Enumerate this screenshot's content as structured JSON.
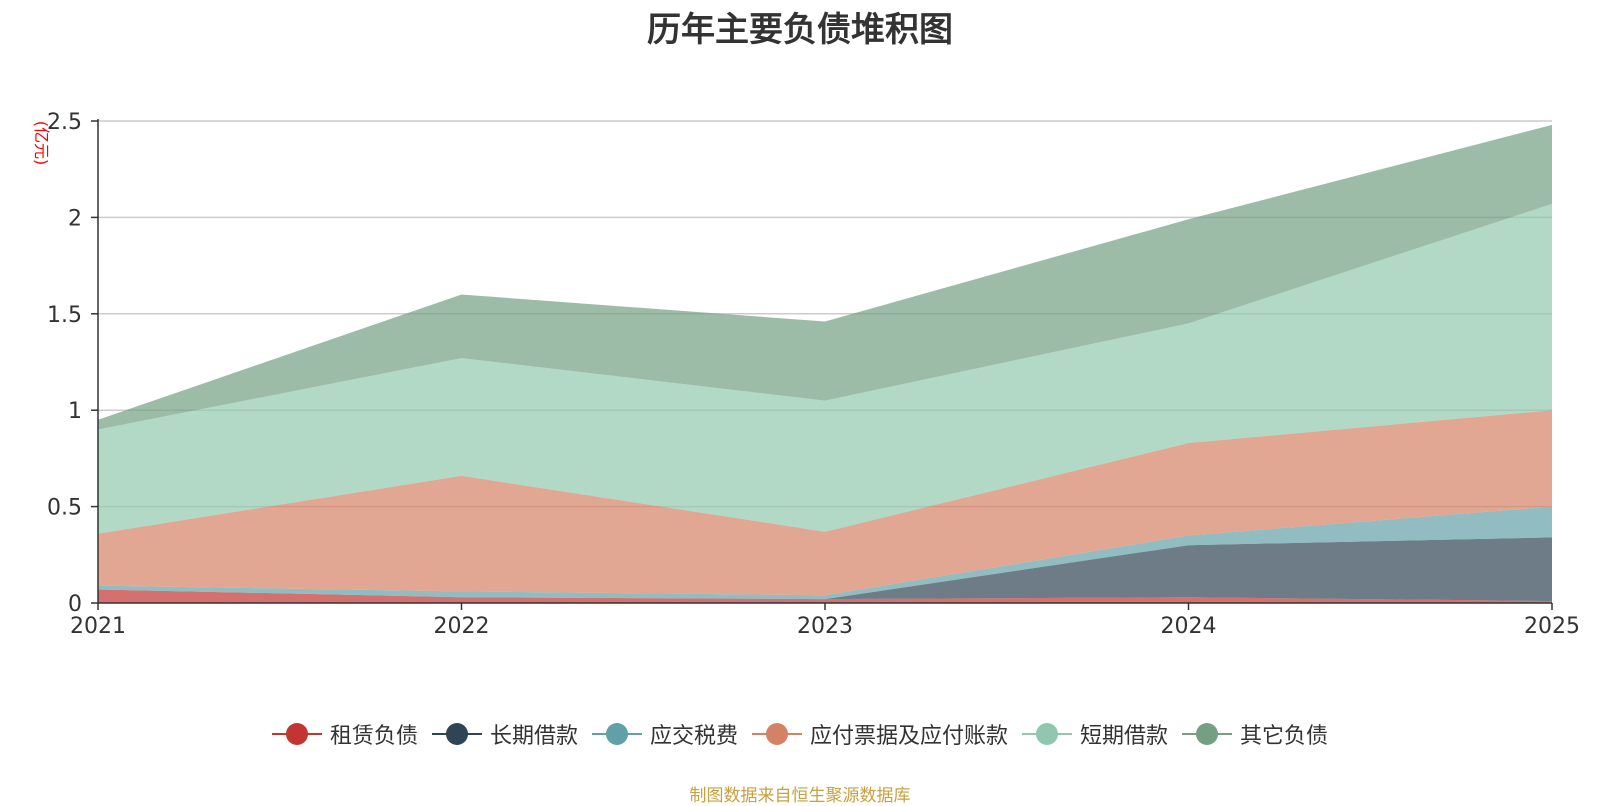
{
  "chart_data": {
    "type": "area",
    "stacked": true,
    "title": "历年主要负债堆积图",
    "ylabel": "(亿元)",
    "xlabel": "",
    "categories": [
      "2021",
      "2022",
      "2023",
      "2024",
      "2025"
    ],
    "yticks": [
      "0",
      "0.5",
      "1",
      "1.5",
      "2",
      "2.5"
    ],
    "ylim": [
      0,
      2.5
    ],
    "grid": true,
    "legend_position": "bottom",
    "series": [
      {
        "name": "租赁负债",
        "color": "#c23531",
        "values": [
          0.07,
          0.03,
          0.02,
          0.03,
          0.01
        ]
      },
      {
        "name": "长期借款",
        "color": "#2f4554",
        "values": [
          0.0,
          0.0,
          0.0,
          0.27,
          0.33
        ]
      },
      {
        "name": "应交税费",
        "color": "#61a0a8",
        "values": [
          0.02,
          0.03,
          0.02,
          0.05,
          0.16
        ]
      },
      {
        "name": "应付票据及应付账款",
        "color": "#d48265",
        "values": [
          0.27,
          0.6,
          0.33,
          0.48,
          0.5
        ]
      },
      {
        "name": "短期借款",
        "color": "#91c7ae",
        "values": [
          0.54,
          0.61,
          0.68,
          0.62,
          1.07
        ]
      },
      {
        "name": "其它负债",
        "color": "#749f83",
        "values": [
          0.05,
          0.33,
          0.41,
          0.54,
          0.41
        ]
      }
    ]
  },
  "source_note": "制图数据来自恒生聚源数据库"
}
